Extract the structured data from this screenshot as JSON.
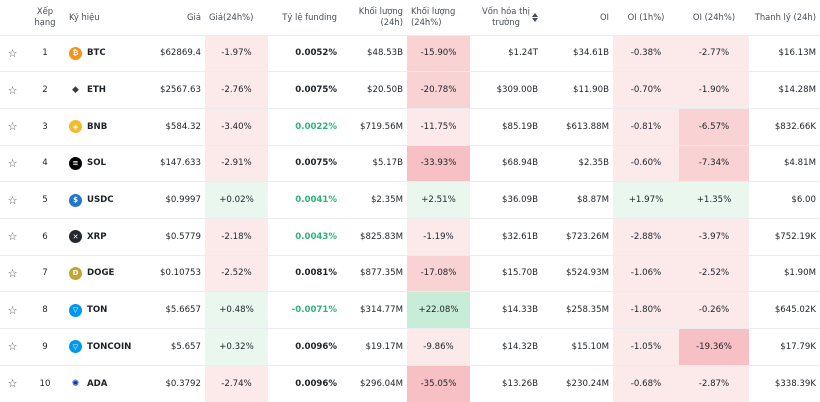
{
  "headers": {
    "rank": "Xếp hạng",
    "symbol": "Ký hiệu",
    "price": "Giá",
    "change24h": "Giá(24h%)",
    "funding": "Tỷ lệ funding",
    "volume24h": "Khối lượng (24h)",
    "volume_change24h": "Khối lượng (24h%)",
    "market_cap_line1": "Vốn hóa thị",
    "market_cap_line2": "trường",
    "oi": "OI",
    "oi_1h": "OI (1h%)",
    "oi_24h": "OI (24h%)",
    "liquidation": "Thanh lý (24h)"
  },
  "colors": {
    "red_light": "#fce9ea",
    "red_mid": "#f9d2d4",
    "red_strong": "#f6c0c4",
    "green_light": "#e9f7ef",
    "green_strong": "#c7ecd8",
    "funding_green": "#2db37a"
  },
  "rows": [
    {
      "rank": "1",
      "icon": "btc-icon",
      "icon_color": "#f7931a",
      "icon_glyph": "₿",
      "symbol": "BTC",
      "price": "$62869.4",
      "change": "-1.97%",
      "change_bg": "#fce9ea",
      "funding": "0.0052%",
      "funding_color": "#1e2329",
      "volume": "$48.53B",
      "vol_change": "-15.90%",
      "vol_change_bg": "#f9d2d4",
      "market_cap": "$1.24T",
      "oi": "$34.61B",
      "oi1h": "-0.38%",
      "oi1h_bg": "#fce9ea",
      "oi24h": "-2.77%",
      "oi24h_bg": "#fce9ea",
      "liq": "$16.13M"
    },
    {
      "rank": "2",
      "icon": "eth-icon",
      "icon_color": "#ffffff",
      "icon_glyph": "◆",
      "symbol": "ETH",
      "price": "$2567.63",
      "change": "-2.76%",
      "change_bg": "#fce9ea",
      "funding": "0.0075%",
      "funding_color": "#1e2329",
      "volume": "$20.50B",
      "vol_change": "-20.78%",
      "vol_change_bg": "#f9d2d4",
      "market_cap": "$309.00B",
      "oi": "$11.90B",
      "oi1h": "-0.70%",
      "oi1h_bg": "#fce9ea",
      "oi24h": "-1.90%",
      "oi24h_bg": "#fce9ea",
      "liq": "$14.28M"
    },
    {
      "rank": "3",
      "icon": "bnb-icon",
      "icon_color": "#f3ba2f",
      "icon_glyph": "◈",
      "symbol": "BNB",
      "price": "$584.32",
      "change": "-3.40%",
      "change_bg": "#fce9ea",
      "funding": "0.0022%",
      "funding_color": "#2db37a",
      "volume": "$719.56M",
      "vol_change": "-11.75%",
      "vol_change_bg": "#fce9ea",
      "market_cap": "$85.19B",
      "oi": "$613.88M",
      "oi1h": "-0.81%",
      "oi1h_bg": "#fce9ea",
      "oi24h": "-6.57%",
      "oi24h_bg": "#f9d2d4",
      "liq": "$832.66K"
    },
    {
      "rank": "4",
      "icon": "sol-icon",
      "icon_color": "#000000",
      "icon_glyph": "≡",
      "symbol": "SOL",
      "price": "$147.633",
      "change": "-2.91%",
      "change_bg": "#fce9ea",
      "funding": "0.0075%",
      "funding_color": "#1e2329",
      "volume": "$5.17B",
      "vol_change": "-33.93%",
      "vol_change_bg": "#f6c0c4",
      "market_cap": "$68.94B",
      "oi": "$2.35B",
      "oi1h": "-0.60%",
      "oi1h_bg": "#fce9ea",
      "oi24h": "-7.34%",
      "oi24h_bg": "#f9d2d4",
      "liq": "$4.81M"
    },
    {
      "rank": "5",
      "icon": "usdc-icon",
      "icon_color": "#2775ca",
      "icon_glyph": "$",
      "symbol": "USDC",
      "price": "$0.9997",
      "change": "+0.02%",
      "change_bg": "#e9f7ef",
      "funding": "0.0041%",
      "funding_color": "#2db37a",
      "volume": "$2.35M",
      "vol_change": "+2.51%",
      "vol_change_bg": "#e9f7ef",
      "market_cap": "$36.09B",
      "oi": "$8.87M",
      "oi1h": "+1.97%",
      "oi1h_bg": "#e9f7ef",
      "oi24h": "+1.35%",
      "oi24h_bg": "#e9f7ef",
      "liq": "$6.00"
    },
    {
      "rank": "6",
      "icon": "xrp-icon",
      "icon_color": "#23292f",
      "icon_glyph": "✕",
      "symbol": "XRP",
      "price": "$0.5779",
      "change": "-2.18%",
      "change_bg": "#fce9ea",
      "funding": "0.0043%",
      "funding_color": "#2db37a",
      "volume": "$825.83M",
      "vol_change": "-1.19%",
      "vol_change_bg": "#fce9ea",
      "market_cap": "$32.61B",
      "oi": "$723.26M",
      "oi1h": "-2.88%",
      "oi1h_bg": "#fce9ea",
      "oi24h": "-3.97%",
      "oi24h_bg": "#fce9ea",
      "liq": "$752.19K"
    },
    {
      "rank": "7",
      "icon": "doge-icon",
      "icon_color": "#c2a633",
      "icon_glyph": "D",
      "symbol": "DOGE",
      "price": "$0.10753",
      "change": "-2.52%",
      "change_bg": "#fce9ea",
      "funding": "0.0081%",
      "funding_color": "#1e2329",
      "volume": "$877.35M",
      "vol_change": "-17.08%",
      "vol_change_bg": "#f9d2d4",
      "market_cap": "$15.70B",
      "oi": "$524.93M",
      "oi1h": "-1.06%",
      "oi1h_bg": "#fce9ea",
      "oi24h": "-2.52%",
      "oi24h_bg": "#fce9ea",
      "liq": "$1.90M"
    },
    {
      "rank": "8",
      "icon": "ton-icon",
      "icon_color": "#0098ea",
      "icon_glyph": "▽",
      "symbol": "TON",
      "price": "$5.6657",
      "change": "+0.48%",
      "change_bg": "#e9f7ef",
      "funding": "-0.0071%",
      "funding_color": "#2db37a",
      "volume": "$314.77M",
      "vol_change": "+22.08%",
      "vol_change_bg": "#c7ecd8",
      "market_cap": "$14.33B",
      "oi": "$258.35M",
      "oi1h": "-1.80%",
      "oi1h_bg": "#fce9ea",
      "oi24h": "-0.26%",
      "oi24h_bg": "#fce9ea",
      "liq": "$645.02K"
    },
    {
      "rank": "9",
      "icon": "toncoin-icon",
      "icon_color": "#0098ea",
      "icon_glyph": "▽",
      "symbol": "TONCOIN",
      "price": "$5.657",
      "change": "+0.32%",
      "change_bg": "#e9f7ef",
      "funding": "0.0096%",
      "funding_color": "#1e2329",
      "volume": "$19.17M",
      "vol_change": "-9.86%",
      "vol_change_bg": "#fce9ea",
      "market_cap": "$14.32B",
      "oi": "$15.10M",
      "oi1h": "-1.05%",
      "oi1h_bg": "#fce9ea",
      "oi24h": "-19.36%",
      "oi24h_bg": "#f6c0c4",
      "liq": "$17.79K"
    },
    {
      "rank": "10",
      "icon": "ada-icon",
      "icon_color": "#ffffff",
      "icon_glyph": "✺",
      "symbol": "ADA",
      "price": "$0.3792",
      "change": "-2.74%",
      "change_bg": "#fce9ea",
      "funding": "0.0096%",
      "funding_color": "#1e2329",
      "volume": "$296.04M",
      "vol_change": "-35.05%",
      "vol_change_bg": "#f6c0c4",
      "market_cap": "$13.26B",
      "oi": "$230.24M",
      "oi1h": "-0.68%",
      "oi1h_bg": "#fce9ea",
      "oi24h": "-2.87%",
      "oi24h_bg": "#fce9ea",
      "liq": "$338.39K"
    }
  ]
}
